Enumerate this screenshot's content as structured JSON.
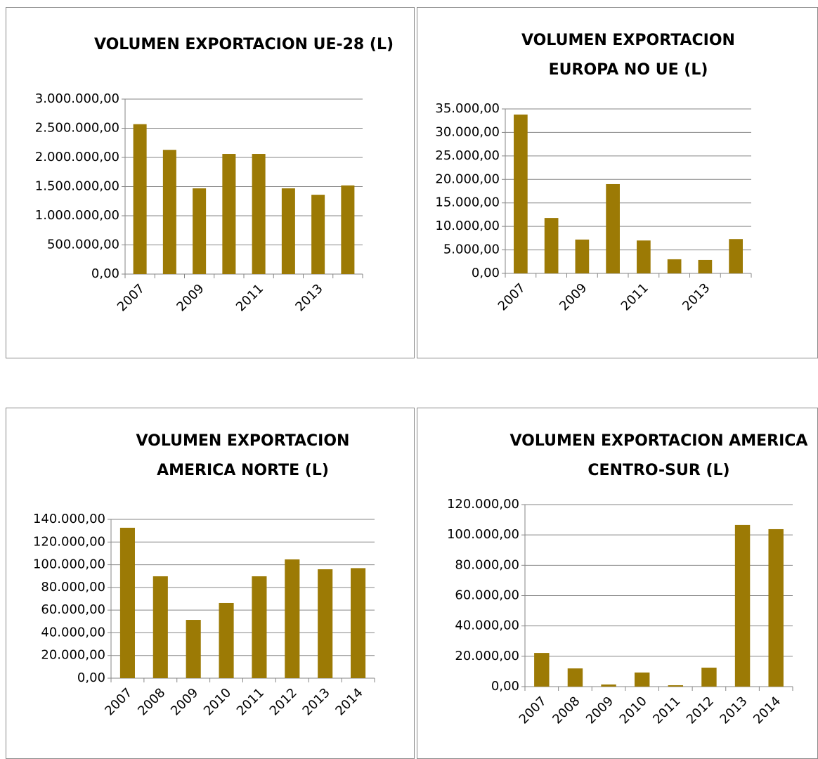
{
  "chart_data": [
    {
      "type": "bar",
      "title": "VOLUMEN EXPORTACION UE-28 (L)",
      "color": "#9c7a05",
      "grid": true,
      "categories": [
        "2007",
        null,
        "2009",
        null,
        "2011",
        null,
        "2013",
        null
      ],
      "values": [
        2570000,
        2130000,
        1470000,
        2060000,
        2060000,
        1470000,
        1360000,
        1520000
      ],
      "ylim": [
        0,
        3000000
      ],
      "yticks": [
        {
          "value": 0,
          "label": "0,00"
        },
        {
          "value": 500000,
          "label": "500.000,00"
        },
        {
          "value": 1000000,
          "label": "1.000.000,00"
        },
        {
          "value": 1500000,
          "label": "1.500.000,00"
        },
        {
          "value": 2000000,
          "label": "2.000.000,00"
        },
        {
          "value": 2500000,
          "label": "2.500.000,00"
        },
        {
          "value": 3000000,
          "label": "3.000.000,00"
        }
      ]
    },
    {
      "type": "bar",
      "title": "VOLUMEN EXPORTACION EUROPA NO UE (L)",
      "color": "#9c7a05",
      "grid": true,
      "categories": [
        "2007",
        null,
        "2009",
        null,
        "2011",
        null,
        "2013",
        null
      ],
      "values": [
        33800,
        11800,
        7200,
        19000,
        7000,
        3000,
        2850,
        7300
      ],
      "ylim": [
        0,
        35000
      ],
      "yticks": [
        {
          "value": 0,
          "label": "0,00"
        },
        {
          "value": 5000,
          "label": "5.000,00"
        },
        {
          "value": 10000,
          "label": "10.000,00"
        },
        {
          "value": 15000,
          "label": "15.000,00"
        },
        {
          "value": 20000,
          "label": "20.000,00"
        },
        {
          "value": 25000,
          "label": "25.000,00"
        },
        {
          "value": 30000,
          "label": "30.000,00"
        },
        {
          "value": 35000,
          "label": "35.000,00"
        }
      ]
    },
    {
      "type": "bar",
      "title": "VOLUMEN EXPORTACION AMERICA NORTE (L)",
      "color": "#9c7a05",
      "grid": true,
      "categories": [
        "2007",
        "2008",
        "2009",
        "2010",
        "2011",
        "2012",
        "2013",
        "2014"
      ],
      "values": [
        132600,
        89800,
        51400,
        66300,
        89800,
        104700,
        96000,
        97000
      ],
      "ylim": [
        0,
        140000
      ],
      "yticks": [
        {
          "value": 0,
          "label": "0,00"
        },
        {
          "value": 20000,
          "label": "20.000,00"
        },
        {
          "value": 40000,
          "label": "40.000,00"
        },
        {
          "value": 60000,
          "label": "60.000,00"
        },
        {
          "value": 80000,
          "label": "80.000,00"
        },
        {
          "value": 100000,
          "label": "100.000,00"
        },
        {
          "value": 120000,
          "label": "120.000,00"
        },
        {
          "value": 140000,
          "label": "140.000,00"
        }
      ]
    },
    {
      "type": "bar",
      "title": "VOLUMEN EXPORTACION AMERICA CENTRO-SUR (L)",
      "color": "#9c7a05",
      "grid": true,
      "categories": [
        "2007",
        "2008",
        "2009",
        "2010",
        "2011",
        "2012",
        "2013",
        "2014"
      ],
      "values": [
        22200,
        12000,
        1400,
        9300,
        900,
        12500,
        106600,
        103800
      ],
      "ylim": [
        0,
        120000
      ],
      "yticks": [
        {
          "value": 0,
          "label": "0,00"
        },
        {
          "value": 20000,
          "label": "20.000,00"
        },
        {
          "value": 40000,
          "label": "40.000,00"
        },
        {
          "value": 60000,
          "label": "60.000,00"
        },
        {
          "value": 80000,
          "label": "80.000,00"
        },
        {
          "value": 100000,
          "label": "100.000,00"
        },
        {
          "value": 120000,
          "label": "120.000,00"
        }
      ]
    }
  ]
}
